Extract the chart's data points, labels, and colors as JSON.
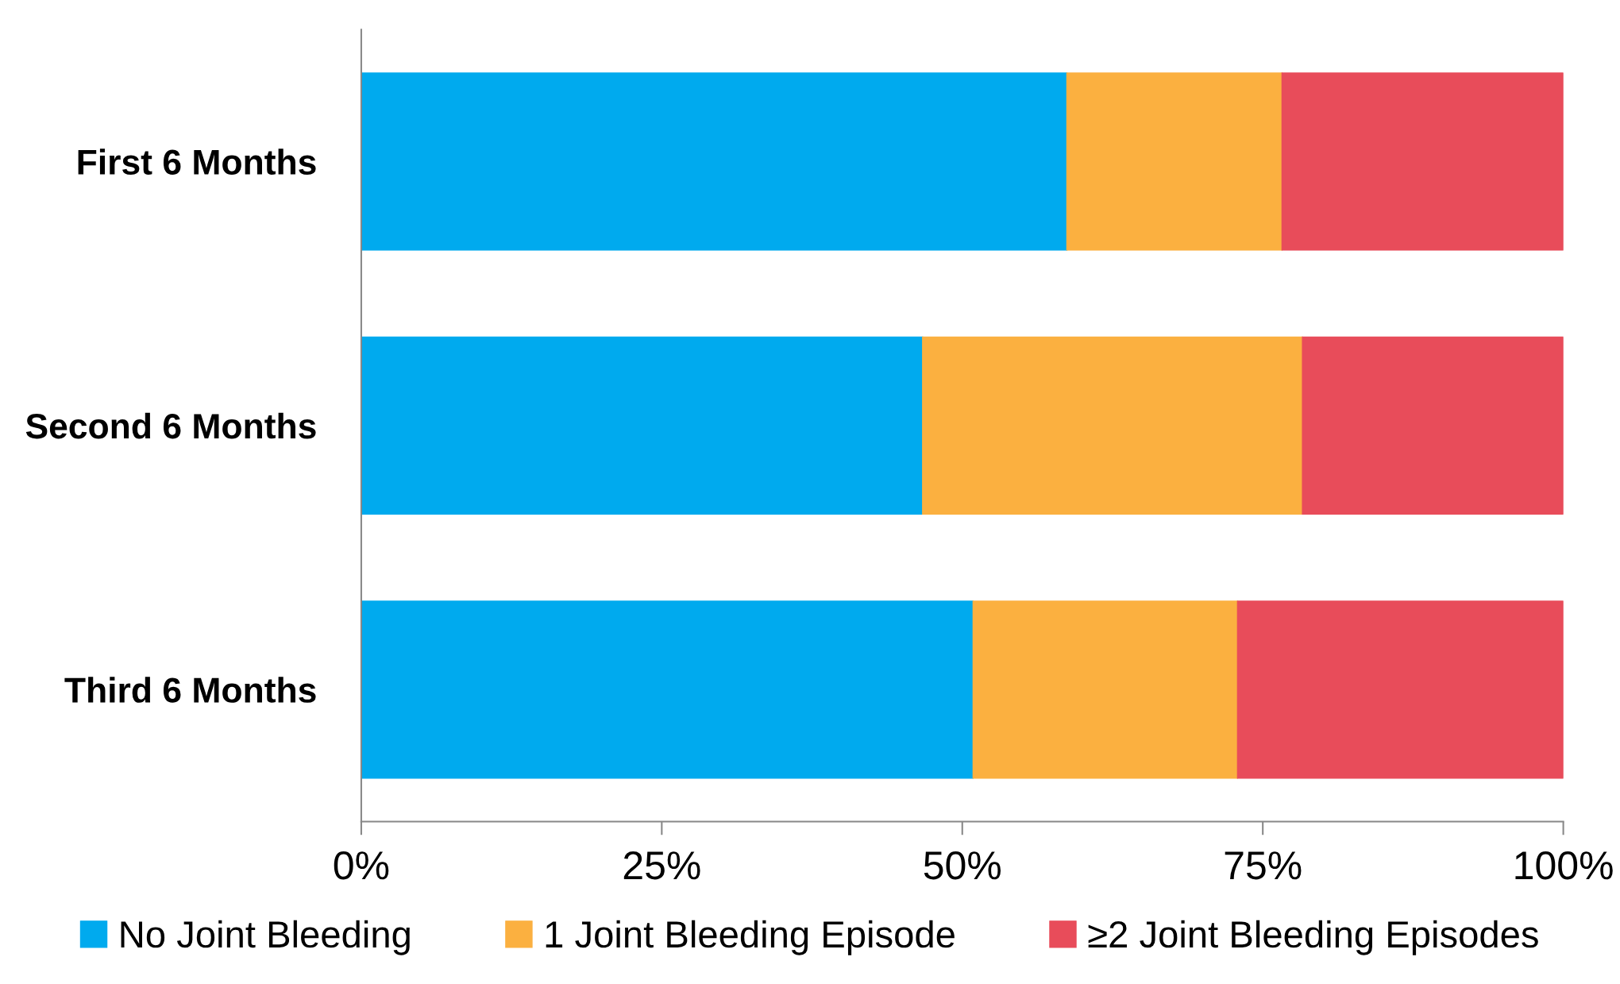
{
  "chart_data": {
    "type": "bar",
    "orientation": "horizontal",
    "stacked": true,
    "categories": [
      "First 6 Months",
      "Second 6 Months",
      "Third 6 Months"
    ],
    "series": [
      {
        "name": "No Joint Bleeding",
        "color": "#00aaee",
        "values": [
          58.7,
          46.7,
          50.9
        ]
      },
      {
        "name": "1 Joint Bleeding Episode",
        "color": "#fbb040",
        "values": [
          17.9,
          31.6,
          22.0
        ]
      },
      {
        "name": "≥2 Joint Bleeding Episodes",
        "color": "#e84c5a",
        "values": [
          23.4,
          21.7,
          27.1
        ]
      }
    ],
    "xlim": [
      0,
      100
    ],
    "xticks": [
      {
        "value": 0,
        "label": "0%"
      },
      {
        "value": 25,
        "label": "25%"
      },
      {
        "value": 50,
        "label": "50%"
      },
      {
        "value": 75,
        "label": "75%"
      },
      {
        "value": 100,
        "label": "100%"
      }
    ],
    "grid": false,
    "legend": "bottom"
  }
}
